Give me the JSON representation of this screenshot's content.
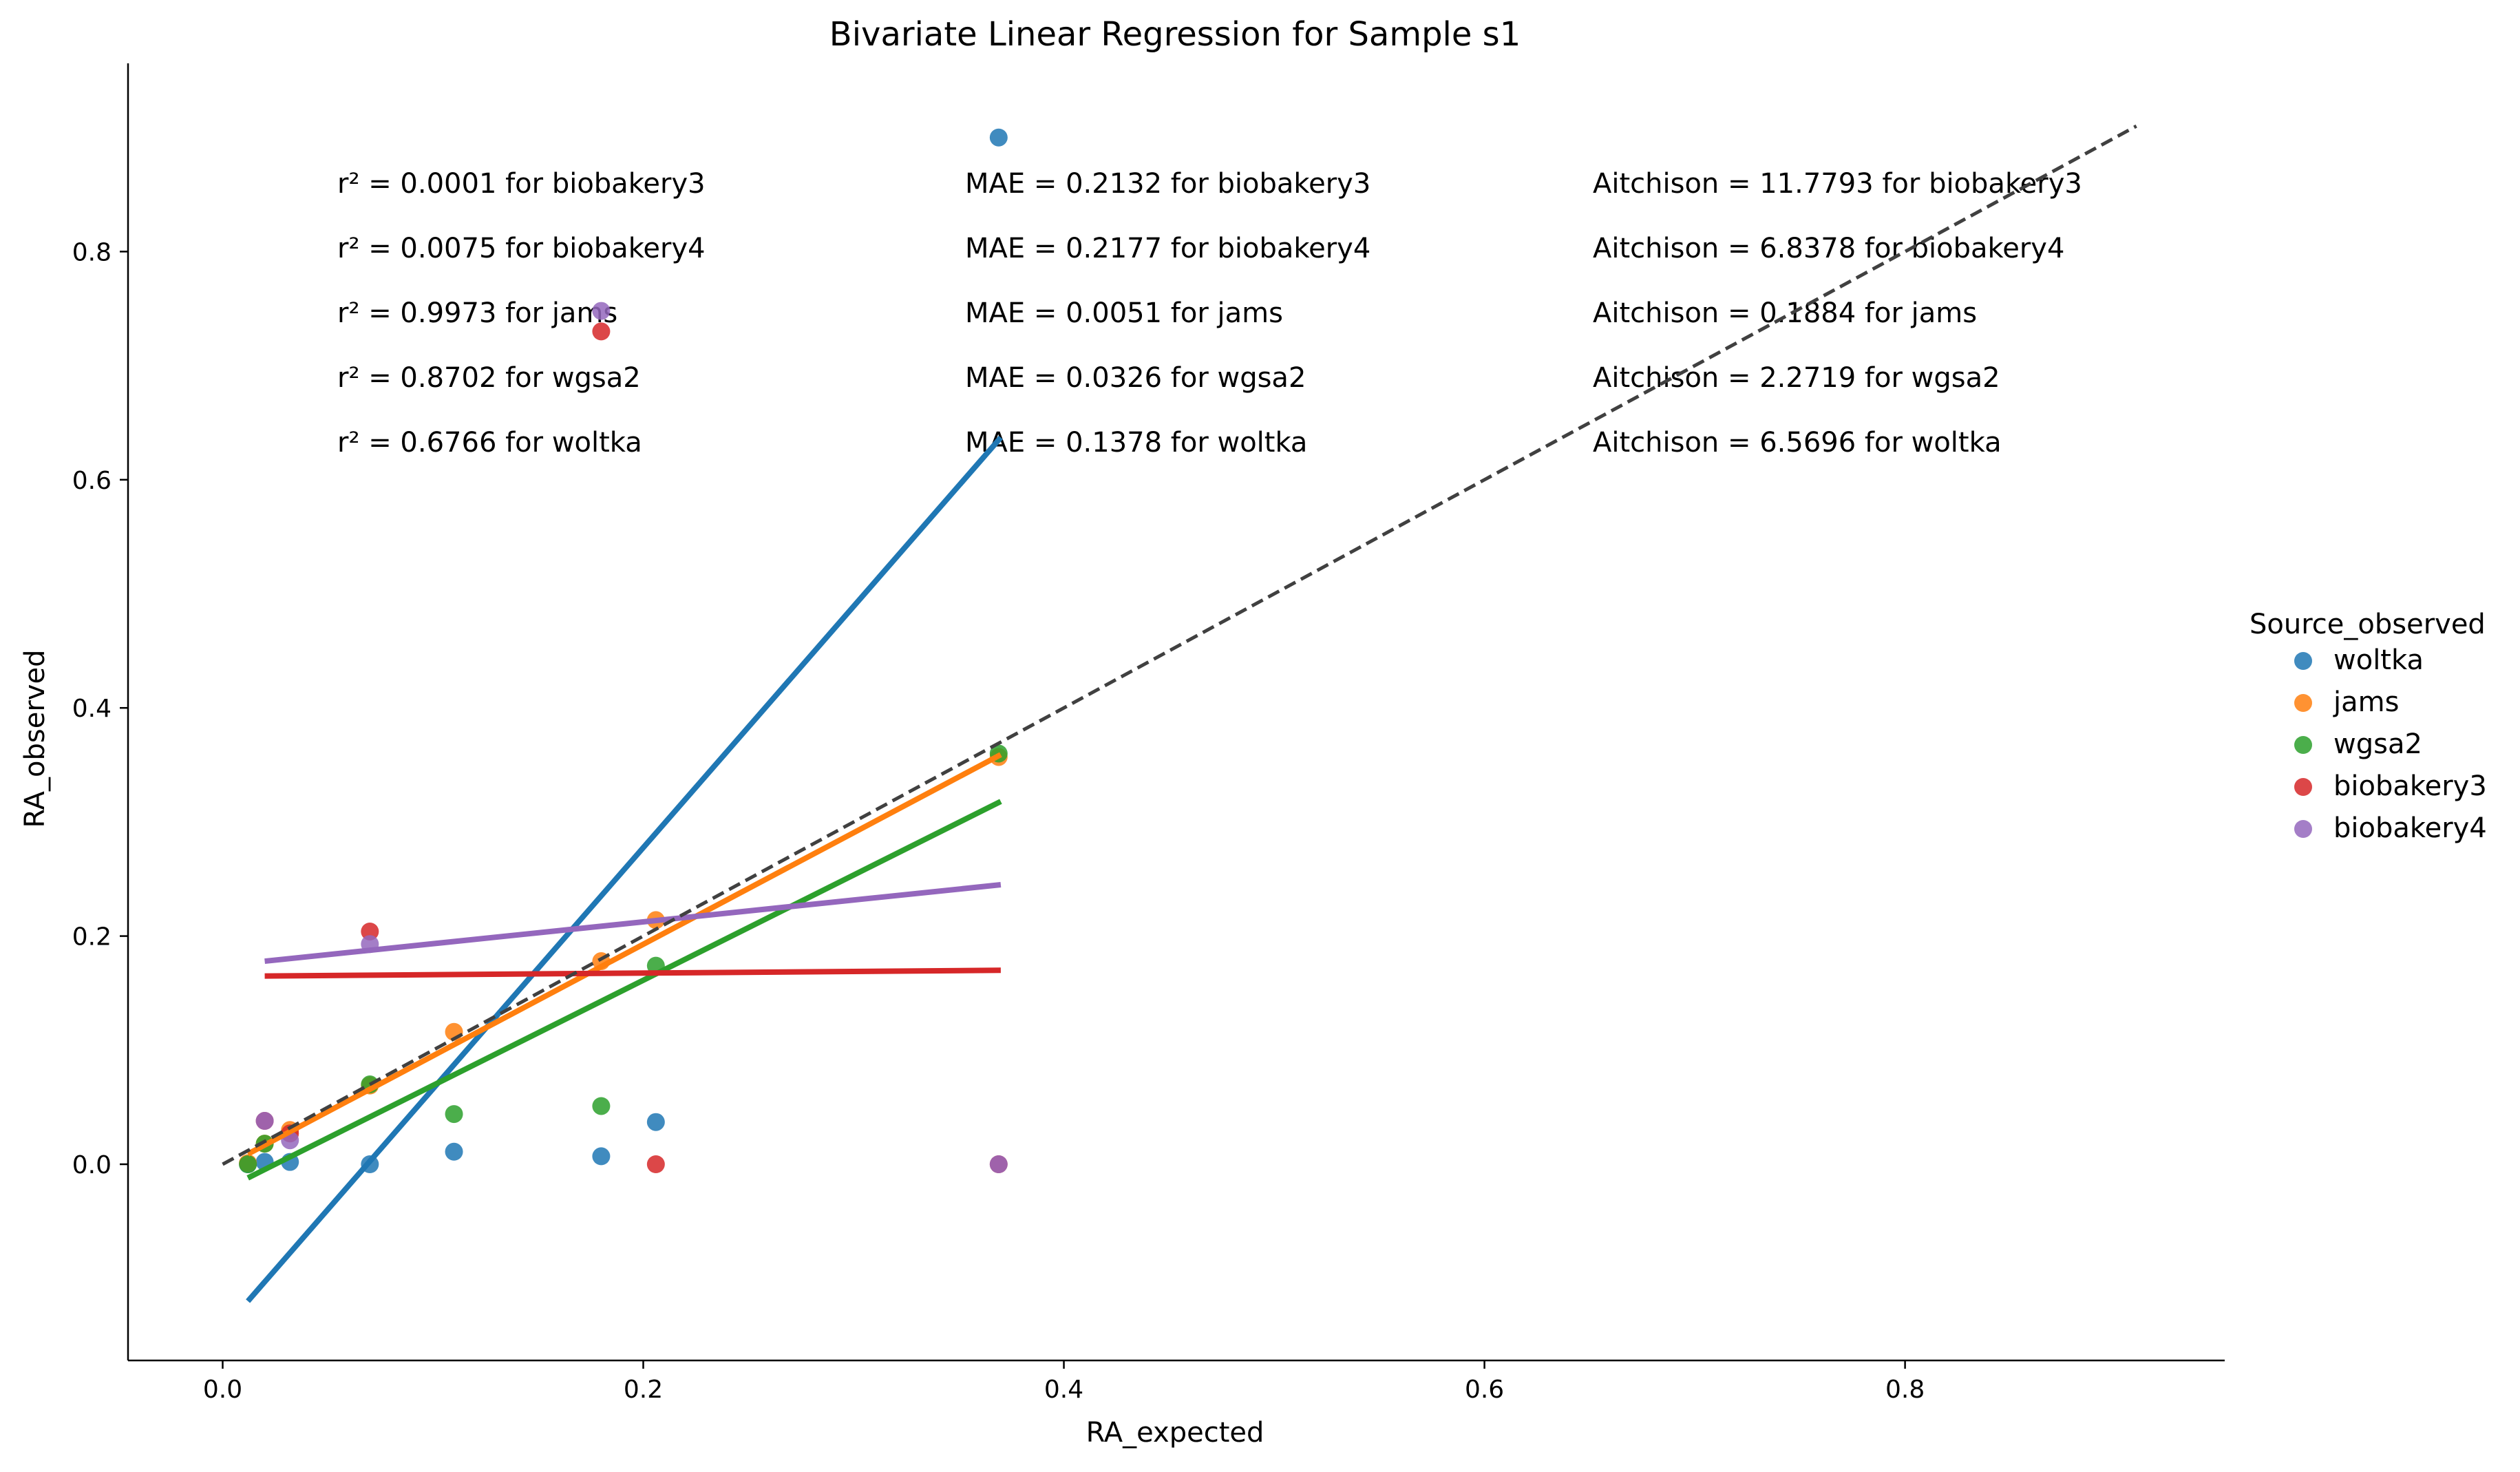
{
  "chart_data": {
    "type": "scatter",
    "title": "Bivariate Linear Regression for Sample s1",
    "xlabel": "RA_expected",
    "ylabel": "RA_observed",
    "xlim": [
      -0.045,
      0.952
    ],
    "ylim": [
      -0.172,
      0.965
    ],
    "xticks": [
      "0.0",
      "0.2",
      "0.4",
      "0.6",
      "0.8"
    ],
    "yticks": [
      "0.0",
      "0.2",
      "0.4",
      "0.6",
      "0.8"
    ],
    "grid": false,
    "legend": {
      "title": "Source_observed",
      "placement": "right",
      "entries": [
        "woltka",
        "jams",
        "wgsa2",
        "biobakery3",
        "biobakery4"
      ]
    },
    "identity_line": {
      "from": [
        0,
        0
      ],
      "to": [
        0.91,
        0.91
      ],
      "style": "dashed",
      "color": "#404040"
    },
    "series": [
      {
        "name": "woltka",
        "color": "#1f77b4",
        "points": [
          [
            0.012,
            0.0
          ],
          [
            0.02,
            0.002
          ],
          [
            0.032,
            0.002
          ],
          [
            0.07,
            0.0
          ],
          [
            0.11,
            0.011
          ],
          [
            0.18,
            0.007
          ],
          [
            0.206,
            0.037
          ],
          [
            0.369,
            0.9
          ]
        ],
        "fit": [
          [
            0.012,
            -0.12
          ],
          [
            0.37,
            0.637
          ]
        ]
      },
      {
        "name": "jams",
        "color": "#ff7f0e",
        "points": [
          [
            0.012,
            0.001
          ],
          [
            0.02,
            0.018
          ],
          [
            0.032,
            0.03
          ],
          [
            0.07,
            0.069
          ],
          [
            0.11,
            0.116
          ],
          [
            0.18,
            0.178
          ],
          [
            0.206,
            0.214
          ],
          [
            0.369,
            0.357
          ]
        ],
        "fit": [
          [
            0.012,
            0.009
          ],
          [
            0.37,
            0.359
          ]
        ]
      },
      {
        "name": "wgsa2",
        "color": "#2ca02c",
        "points": [
          [
            0.012,
            0.0
          ],
          [
            0.02,
            0.018
          ],
          [
            0.07,
            0.07
          ],
          [
            0.11,
            0.044
          ],
          [
            0.18,
            0.051
          ],
          [
            0.206,
            0.174
          ],
          [
            0.369,
            0.36
          ]
        ],
        "fit": [
          [
            0.012,
            -0.012
          ],
          [
            0.37,
            0.318
          ]
        ]
      },
      {
        "name": "biobakery3",
        "color": "#d62728",
        "points": [
          [
            0.02,
            0.038
          ],
          [
            0.032,
            0.027
          ],
          [
            0.07,
            0.204
          ],
          [
            0.18,
            0.73
          ],
          [
            0.206,
            0.0
          ],
          [
            0.369,
            0.0
          ]
        ],
        "fit": [
          [
            0.02,
            0.165
          ],
          [
            0.37,
            0.17
          ]
        ]
      },
      {
        "name": "biobakery4",
        "color": "#9467bd",
        "points": [
          [
            0.02,
            0.038
          ],
          [
            0.032,
            0.021
          ],
          [
            0.07,
            0.193
          ],
          [
            0.18,
            0.748
          ],
          [
            0.369,
            0.0
          ]
        ],
        "fit": [
          [
            0.02,
            0.178
          ],
          [
            0.37,
            0.245
          ]
        ]
      }
    ],
    "annotations": {
      "r2": [
        "r² = 0.0001 for biobakery3",
        "r² = 0.0075 for biobakery4",
        "r² = 0.9973 for jams",
        "r² = 0.8702 for wgsa2",
        "r² = 0.6766 for woltka"
      ],
      "mae": [
        "MAE = 0.2132 for biobakery3",
        "MAE = 0.2177 for biobakery4",
        "MAE = 0.0051 for jams",
        "MAE = 0.0326 for wgsa2",
        "MAE = 0.1378 for woltka"
      ],
      "aitchison": [
        "Aitchison = 11.7793 for biobakery3",
        "Aitchison = 6.8378 for biobakery4",
        "Aitchison = 0.1884 for jams",
        "Aitchison = 2.2719 for wgsa2",
        "Aitchison = 6.5696 for woltka"
      ]
    }
  }
}
